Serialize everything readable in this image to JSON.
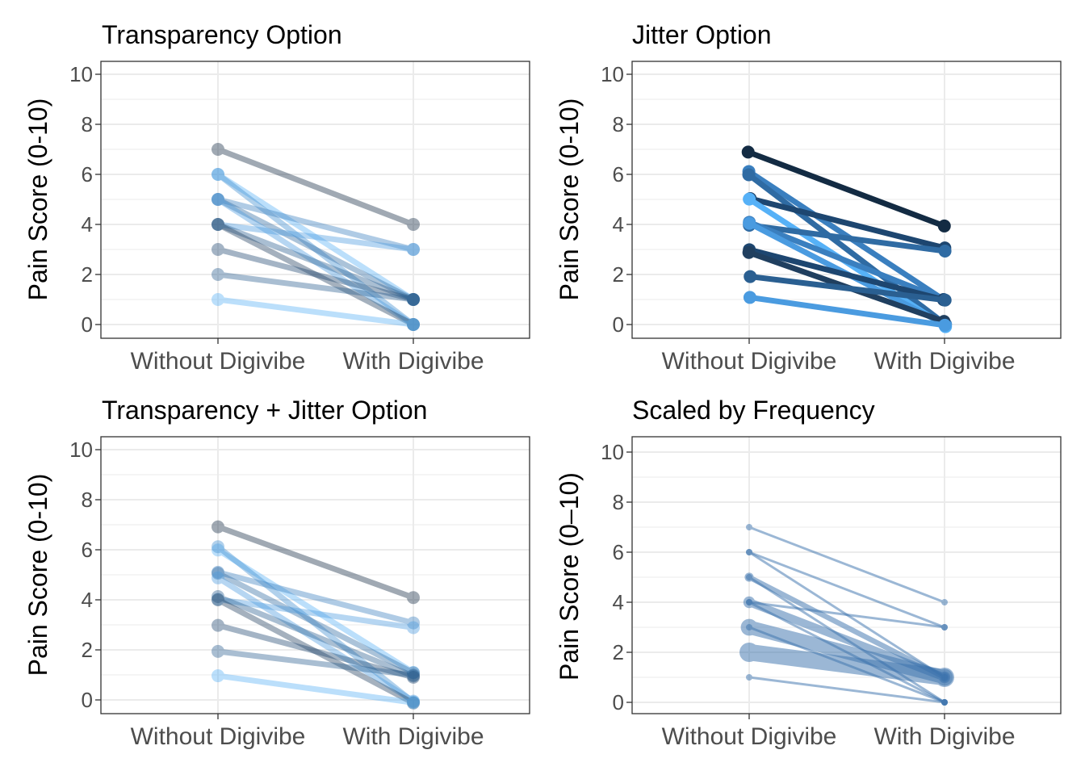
{
  "chart_data": [
    {
      "type": "line",
      "title": "Transparency Option",
      "xlabel": "",
      "ylabel": "Pain Score (0-10)",
      "categories": [
        "Without Digivibe",
        "With Digivibe"
      ],
      "yticks": [
        "0",
        "2",
        "4",
        "6",
        "8",
        "10"
      ],
      "ylim": [
        -0.5,
        10.5
      ],
      "grid": true,
      "legend": "none",
      "style": "transparency",
      "series": [
        {
          "values": [
            7,
            4
          ],
          "color": "#132b43"
        },
        {
          "values": [
            6,
            1
          ],
          "color": "#56b1f7"
        },
        {
          "values": [
            6,
            0
          ],
          "color": "#3e8dd0"
        },
        {
          "values": [
            5,
            3
          ],
          "color": "#3a7fbf"
        },
        {
          "values": [
            5,
            1
          ],
          "color": "#2f6ba3"
        },
        {
          "values": [
            5,
            0
          ],
          "color": "#4a9be0"
        },
        {
          "values": [
            4,
            3
          ],
          "color": "#4a9be0"
        },
        {
          "values": [
            4,
            1
          ],
          "color": "#2a5f91"
        },
        {
          "values": [
            4,
            0
          ],
          "color": "#203f5f"
        },
        {
          "values": [
            3,
            1
          ],
          "color": "#1d4670"
        },
        {
          "values": [
            2,
            1
          ],
          "color": "#2a5f91"
        },
        {
          "values": [
            1,
            0
          ],
          "color": "#56b1f7"
        }
      ]
    },
    {
      "type": "line",
      "title": "Jitter Option",
      "xlabel": "",
      "ylabel": "Pain Score (0-10)",
      "categories": [
        "Without Digivibe",
        "With Digivibe"
      ],
      "yticks": [
        "0",
        "2",
        "4",
        "6",
        "8",
        "10"
      ],
      "ylim": [
        -0.5,
        10.5
      ],
      "grid": true,
      "legend": "none",
      "style": "jitter",
      "series": [
        {
          "values": [
            7,
            4
          ],
          "color": "#132b43"
        },
        {
          "values": [
            6,
            1
          ],
          "color": "#3a7fbf"
        },
        {
          "values": [
            6,
            0
          ],
          "color": "#2f6ba3"
        },
        {
          "values": [
            5,
            3
          ],
          "color": "#1d4670"
        },
        {
          "values": [
            5,
            0
          ],
          "color": "#56b1f7"
        },
        {
          "values": [
            4,
            3
          ],
          "color": "#2f6ba3"
        },
        {
          "values": [
            4,
            1
          ],
          "color": "#3a7fbf"
        },
        {
          "values": [
            4,
            0
          ],
          "color": "#4a9be0"
        },
        {
          "values": [
            3,
            1
          ],
          "color": "#1d4670"
        },
        {
          "values": [
            3,
            0
          ],
          "color": "#203f5f"
        },
        {
          "values": [
            2,
            1
          ],
          "color": "#2a5f91"
        },
        {
          "values": [
            1,
            0
          ],
          "color": "#4a9be0"
        }
      ]
    },
    {
      "type": "line",
      "title": "Transparency + Jitter Option",
      "xlabel": "",
      "ylabel": "Pain Score (0-10)",
      "categories": [
        "Without Digivibe",
        "With Digivibe"
      ],
      "yticks": [
        "0",
        "2",
        "4",
        "6",
        "8",
        "10"
      ],
      "ylim": [
        -0.5,
        10.5
      ],
      "grid": true,
      "legend": "none",
      "style": "both",
      "series": [
        {
          "values": [
            7,
            4
          ],
          "color": "#132b43"
        },
        {
          "values": [
            6,
            1
          ],
          "color": "#56b1f7"
        },
        {
          "values": [
            6,
            0
          ],
          "color": "#3e8dd0"
        },
        {
          "values": [
            5,
            3
          ],
          "color": "#3a7fbf"
        },
        {
          "values": [
            5,
            1
          ],
          "color": "#2f6ba3"
        },
        {
          "values": [
            5,
            0
          ],
          "color": "#4a9be0"
        },
        {
          "values": [
            4,
            3
          ],
          "color": "#4a9be0"
        },
        {
          "values": [
            4,
            1
          ],
          "color": "#2a5f91"
        },
        {
          "values": [
            4,
            0
          ],
          "color": "#203f5f"
        },
        {
          "values": [
            3,
            1
          ],
          "color": "#1d4670"
        },
        {
          "values": [
            2,
            1
          ],
          "color": "#2a5f91"
        },
        {
          "values": [
            1,
            0
          ],
          "color": "#56b1f7"
        }
      ]
    },
    {
      "type": "line",
      "title": "Scaled by Frequency",
      "xlabel": "",
      "ylabel": "Pain Score (0–10)",
      "categories": [
        "Without Digivibe",
        "With Digivibe"
      ],
      "yticks": [
        "0",
        "2",
        "4",
        "6",
        "8",
        "10"
      ],
      "ylim": [
        -0.5,
        10.5
      ],
      "grid": true,
      "legend": "none",
      "style": "scaled",
      "series": [
        {
          "values": [
            7,
            4
          ],
          "color": "#3a72ad",
          "weight": 1
        },
        {
          "values": [
            6,
            3
          ],
          "color": "#3a72ad",
          "weight": 1
        },
        {
          "values": [
            6,
            1
          ],
          "color": "#3a72ad",
          "weight": 1
        },
        {
          "values": [
            5,
            1
          ],
          "color": "#3a72ad",
          "weight": 2
        },
        {
          "values": [
            5,
            0
          ],
          "color": "#3a72ad",
          "weight": 1
        },
        {
          "values": [
            4,
            3
          ],
          "color": "#3a72ad",
          "weight": 1
        },
        {
          "values": [
            4,
            1
          ],
          "color": "#3a72ad",
          "weight": 3
        },
        {
          "values": [
            4,
            0
          ],
          "color": "#3a72ad",
          "weight": 1
        },
        {
          "values": [
            3,
            1
          ],
          "color": "#3a72ad",
          "weight": 5
        },
        {
          "values": [
            3,
            0
          ],
          "color": "#3a72ad",
          "weight": 1
        },
        {
          "values": [
            2,
            1
          ],
          "color": "#3a72ad",
          "weight": 6
        },
        {
          "values": [
            1,
            0
          ],
          "color": "#3a72ad",
          "weight": 1
        }
      ]
    }
  ]
}
